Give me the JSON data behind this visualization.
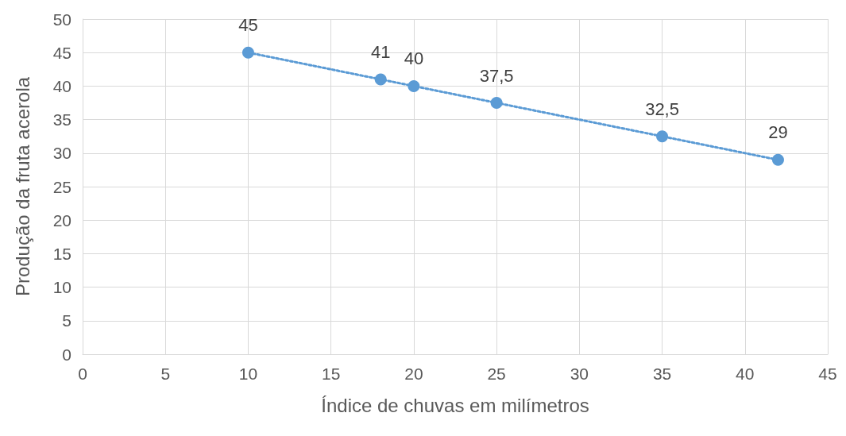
{
  "chart_data": {
    "type": "line",
    "xlabel": "Índice de chuvas em milímetros",
    "ylabel": "Produção da fruta acerola",
    "x": [
      10,
      18,
      20,
      25,
      35,
      42
    ],
    "series": [
      {
        "color": "#5b9bd5",
        "values": [
          45,
          41,
          40,
          37.5,
          32.5,
          29
        ],
        "value_labels": [
          "45",
          "41",
          "40",
          "37,5",
          "32,5",
          "29"
        ]
      }
    ],
    "xlim": [
      0,
      45
    ],
    "xticks": [
      0,
      5,
      10,
      15,
      20,
      25,
      30,
      35,
      40,
      45
    ],
    "ylim": [
      0,
      50
    ],
    "yticks": [
      0,
      5,
      10,
      15,
      20,
      25,
      30,
      35,
      40,
      45,
      50
    ],
    "grid": true,
    "marker": "circle",
    "line_style": "dotted"
  }
}
